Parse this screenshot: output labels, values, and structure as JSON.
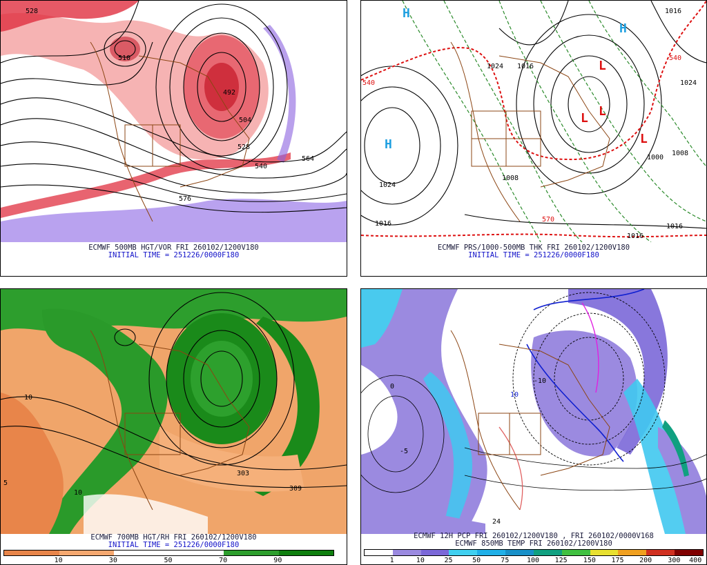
{
  "panels": [
    {
      "id": "top-left",
      "caption_line1": "ECMWF 500MB HGT/VOR FRI 260102/1200V180",
      "caption_line2": "INITIAL TIME = 251226/0000F180",
      "labels": [
        "528",
        "510",
        "492",
        "504",
        "528",
        "540",
        "576",
        "564"
      ]
    },
    {
      "id": "top-right",
      "caption_line1": "ECMWF PRS/1000-500MB THK FRI 260102/1200V180",
      "caption_line2": "INITIAL TIME = 251226/0000F180",
      "labels": [
        "1016",
        "1024",
        "1016",
        "1016",
        "1024",
        "1016",
        "1008",
        "1000",
        "1008",
        "1016",
        "570",
        "540",
        "540",
        "1024"
      ],
      "highs": [
        "H",
        "H",
        "H"
      ],
      "lows": [
        "L",
        "L",
        "L",
        "L"
      ]
    },
    {
      "id": "bottom-left",
      "caption_line1": "ECMWF 700MB HGT/RH FRI 260102/1200V180",
      "caption_line2": "INITIAL TIME = 251226/0000F180",
      "labels": [
        "309",
        "303",
        "10",
        "5",
        "10"
      ],
      "colorbar": {
        "ticks": [
          "10",
          "30",
          "50",
          "70",
          "90"
        ],
        "colors": [
          "#e8854a",
          "#f5a870",
          "#ffffff",
          "#ffffff",
          "#2d9e2d",
          "#0f7f0f"
        ]
      }
    },
    {
      "id": "bottom-right",
      "caption_line1": "ECMWF 12H PCP FRI 260102/1200V180 , FRI 260102/0000V168",
      "caption_line2": "ECMWF 850MB TEMP FRI 260102/1200V180",
      "labels": [
        "10",
        "0",
        "-10",
        "-5",
        "24"
      ],
      "colorbar": {
        "ticks": [
          "1",
          "10",
          "25",
          "50",
          "75",
          "100",
          "125",
          "150",
          "175",
          "200",
          "300",
          "400"
        ],
        "colors": [
          "#ffffff",
          "#9b8ae0",
          "#7b68d8",
          "#40d0f0",
          "#20b0e8",
          "#1890c8",
          "#10a080",
          "#40c040",
          "#e8e030",
          "#f0a020",
          "#d03020",
          "#800000"
        ]
      }
    }
  ]
}
